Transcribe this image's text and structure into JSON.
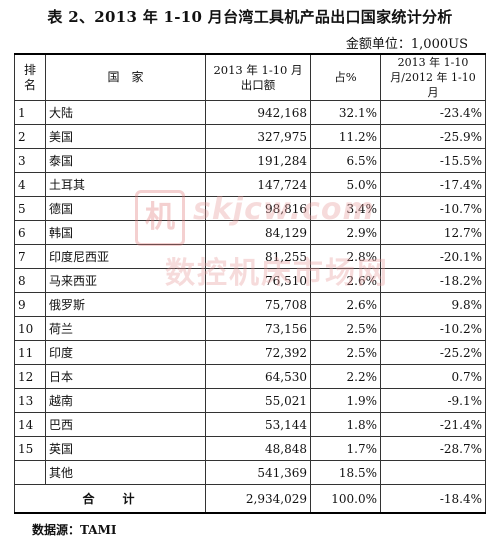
{
  "title": "表 2、2013 年 1-10 月台湾工具机产品出口国家统计分析",
  "unit_note": "金额单位：1,000US",
  "headers": {
    "rank": "排名",
    "country": "国　家",
    "amount": "2013 年 1-10 月出口额",
    "share": "占%",
    "change": "2013 年 1-10 月/2012 年 1-10 月"
  },
  "rows": [
    {
      "rank": "1",
      "country": "大陆",
      "amount": "942,168",
      "share": "32.1%",
      "change": "-23.4%"
    },
    {
      "rank": "2",
      "country": "美国",
      "amount": "327,975",
      "share": "11.2%",
      "change": "-25.9%"
    },
    {
      "rank": "3",
      "country": "泰国",
      "amount": "191,284",
      "share": "6.5%",
      "change": "-15.5%"
    },
    {
      "rank": "4",
      "country": "土耳其",
      "amount": "147,724",
      "share": "5.0%",
      "change": "-17.4%"
    },
    {
      "rank": "5",
      "country": "德国",
      "amount": "98,816",
      "share": "3.4%",
      "change": "-10.7%"
    },
    {
      "rank": "6",
      "country": "韩国",
      "amount": "84,129",
      "share": "2.9%",
      "change": "12.7%"
    },
    {
      "rank": "7",
      "country": "印度尼西亚",
      "amount": "81,255",
      "share": "2.8%",
      "change": "-20.1%"
    },
    {
      "rank": "8",
      "country": "马来西亚",
      "amount": "76,510",
      "share": "2.6%",
      "change": "-18.2%"
    },
    {
      "rank": "9",
      "country": "俄罗斯",
      "amount": "75,708",
      "share": "2.6%",
      "change": "9.8%"
    },
    {
      "rank": "10",
      "country": "荷兰",
      "amount": "73,156",
      "share": "2.5%",
      "change": "-10.2%"
    },
    {
      "rank": "11",
      "country": "印度",
      "amount": "72,392",
      "share": "2.5%",
      "change": "-25.2%"
    },
    {
      "rank": "12",
      "country": "日本",
      "amount": "64,530",
      "share": "2.2%",
      "change": "0.7%"
    },
    {
      "rank": "13",
      "country": "越南",
      "amount": "55,021",
      "share": "1.9%",
      "change": "-9.1%"
    },
    {
      "rank": "14",
      "country": "巴西",
      "amount": "53,144",
      "share": "1.8%",
      "change": "-21.4%"
    },
    {
      "rank": "15",
      "country": "英国",
      "amount": "48,848",
      "share": "1.7%",
      "change": "-28.7%"
    },
    {
      "rank": "",
      "country": "其他",
      "amount": "541,369",
      "share": "18.5%",
      "change": ""
    }
  ],
  "total": {
    "label": "合计",
    "amount": "2,934,029",
    "share": "100.0%",
    "change": "-18.4%"
  },
  "source": "数据源：TAMI",
  "watermark": {
    "logo_char": "机",
    "line1": "skjcw.com",
    "line2": "数控机床市场网"
  }
}
